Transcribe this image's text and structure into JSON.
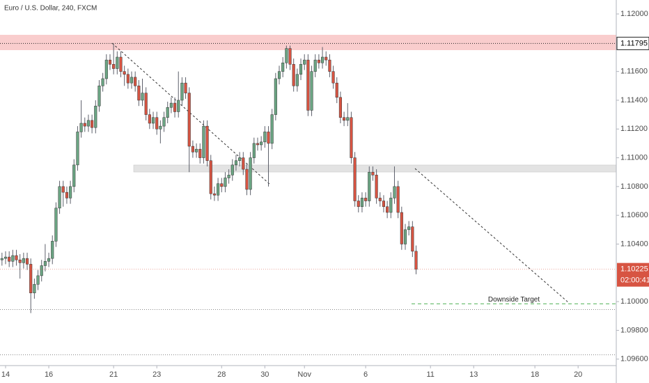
{
  "chart_data": {
    "type": "candlestick",
    "title": "Euro / U.S. Dollar, 240, FXCM",
    "up_color": "#6ba583",
    "down_color": "#d75442",
    "wick_color": "#5d606b",
    "xlim": [
      -1.55,
      169.6
    ],
    "ylim": [
      1.09555,
      1.12097
    ],
    "yticks": [
      {
        "value": 1.12,
        "label": "1.12000"
      },
      {
        "value": 1.116,
        "label": "1.11600"
      },
      {
        "value": 1.114,
        "label": "1.11400"
      },
      {
        "value": 1.112,
        "label": "1.11200"
      },
      {
        "value": 1.11,
        "label": "1.11000"
      },
      {
        "value": 1.108,
        "label": "1.10800"
      },
      {
        "value": 1.106,
        "label": "1.10600"
      },
      {
        "value": 1.104,
        "label": "1.10400"
      },
      {
        "value": 1.1,
        "label": "1.10000"
      },
      {
        "value": 1.098,
        "label": "1.09800"
      },
      {
        "value": 1.096,
        "label": "1.09600"
      }
    ],
    "xticks": [
      {
        "value": 0,
        "label": "14"
      },
      {
        "value": 12,
        "label": "16"
      },
      {
        "value": 30,
        "label": "21"
      },
      {
        "value": 42,
        "label": "23"
      },
      {
        "value": 60,
        "label": "28"
      },
      {
        "value": 72,
        "label": "30"
      },
      {
        "value": 83,
        "label": "Nov"
      },
      {
        "value": 100,
        "label": "6"
      },
      {
        "value": 118,
        "label": "11"
      },
      {
        "value": 130,
        "label": "13"
      },
      {
        "value": 147,
        "label": "18"
      },
      {
        "value": 159,
        "label": "20"
      }
    ],
    "price_line": 1.11795,
    "dotted_lines": [
      1.09945,
      1.0963
    ],
    "target": {
      "value": 1.09985,
      "label": "Downside Target"
    },
    "countdown": "02:00:41",
    "x": [
      -1,
      0,
      1,
      2,
      3,
      4,
      5,
      6,
      7,
      8,
      9,
      10,
      11,
      12,
      13,
      14,
      15,
      16,
      17,
      18,
      19,
      20,
      21,
      22,
      23,
      24,
      25,
      26,
      27,
      28,
      29,
      30,
      31,
      32,
      33,
      34,
      35,
      36,
      37,
      38,
      39,
      40,
      41,
      42,
      43,
      44,
      45,
      46,
      47,
      48,
      49,
      50,
      51,
      52,
      53,
      54,
      55,
      56,
      57,
      58,
      59,
      60,
      61,
      62,
      63,
      64,
      65,
      66,
      67,
      68,
      69,
      70,
      71,
      72,
      73,
      74,
      75,
      76,
      77,
      78,
      79,
      80,
      81,
      82,
      83,
      84,
      85,
      86,
      87,
      88,
      89,
      90,
      91,
      92,
      93,
      94,
      95,
      96,
      97,
      98,
      99,
      100,
      101,
      102,
      103,
      104,
      105,
      106,
      107,
      108,
      109,
      110,
      111,
      112,
      113,
      114
    ],
    "ohlc": [
      [
        1.1029,
        1.1034,
        1.1025,
        1.103
      ],
      [
        1.103,
        1.1035,
        1.1026,
        1.1031
      ],
      [
        1.1031,
        1.1035,
        1.1024,
        1.1028
      ],
      [
        1.1028,
        1.1036,
        1.1024,
        1.1032
      ],
      [
        1.1032,
        1.1036,
        1.1025,
        1.1029
      ],
      [
        1.1029,
        1.1033,
        1.1016,
        1.1027
      ],
      [
        1.1027,
        1.1034,
        1.1023,
        1.103
      ],
      [
        1.103,
        1.1034,
        1.1022,
        1.1026
      ],
      [
        1.1026,
        1.103,
        1.0992,
        1.1006
      ],
      [
        1.1006,
        1.1016,
        1.1002,
        1.1012
      ],
      [
        1.1012,
        1.1022,
        1.1008,
        1.1018
      ],
      [
        1.1018,
        1.1029,
        1.1014,
        1.1025
      ],
      [
        1.1025,
        1.104,
        1.1021,
        1.1028
      ],
      [
        1.1028,
        1.1034,
        1.1024,
        1.103
      ],
      [
        1.103,
        1.1046,
        1.1026,
        1.1042
      ],
      [
        1.1042,
        1.1069,
        1.1038,
        1.1065
      ],
      [
        1.1065,
        1.1084,
        1.1061,
        1.108
      ],
      [
        1.108,
        1.1084,
        1.1066,
        1.1076
      ],
      [
        1.1076,
        1.108,
        1.1068,
        1.1072
      ],
      [
        1.1072,
        1.1084,
        1.1068,
        1.108
      ],
      [
        1.108,
        1.1099,
        1.1076,
        1.1095
      ],
      [
        1.1095,
        1.1122,
        1.1091,
        1.1118
      ],
      [
        1.1118,
        1.114,
        1.1114,
        1.1124
      ],
      [
        1.1124,
        1.1128,
        1.1118,
        1.1122
      ],
      [
        1.1122,
        1.113,
        1.1118,
        1.1126
      ],
      [
        1.1126,
        1.113,
        1.1117,
        1.1121
      ],
      [
        1.1121,
        1.114,
        1.1117,
        1.1136
      ],
      [
        1.1136,
        1.1154,
        1.1132,
        1.115
      ],
      [
        1.115,
        1.1159,
        1.1146,
        1.1155
      ],
      [
        1.1155,
        1.1172,
        1.1151,
        1.1168
      ],
      [
        1.1168,
        1.1172,
        1.1161,
        1.1165
      ],
      [
        1.1165,
        1.1179,
        1.1158,
        1.1162
      ],
      [
        1.1162,
        1.1174,
        1.1158,
        1.117
      ],
      [
        1.117,
        1.1174,
        1.1156,
        1.116
      ],
      [
        1.116,
        1.1164,
        1.115,
        1.1158
      ],
      [
        1.1158,
        1.1162,
        1.1148,
        1.1152
      ],
      [
        1.1152,
        1.116,
        1.1148,
        1.1156
      ],
      [
        1.1156,
        1.116,
        1.1146,
        1.115
      ],
      [
        1.115,
        1.1154,
        1.1136,
        1.114
      ],
      [
        1.114,
        1.1155,
        1.1136,
        1.1145
      ],
      [
        1.1145,
        1.1149,
        1.1126,
        1.113
      ],
      [
        1.113,
        1.1134,
        1.112,
        1.1124
      ],
      [
        1.1124,
        1.1132,
        1.112,
        1.1128
      ],
      [
        1.1128,
        1.1132,
        1.1116,
        1.112
      ],
      [
        1.112,
        1.1126,
        1.111,
        1.1122
      ],
      [
        1.1122,
        1.1132,
        1.1118,
        1.1128
      ],
      [
        1.1128,
        1.1139,
        1.1124,
        1.1135
      ],
      [
        1.1135,
        1.1142,
        1.1131,
        1.1138
      ],
      [
        1.1138,
        1.1142,
        1.1128,
        1.1132
      ],
      [
        1.1132,
        1.116,
        1.1128,
        1.114
      ],
      [
        1.114,
        1.1156,
        1.1136,
        1.1152
      ],
      [
        1.1152,
        1.1156,
        1.1141,
        1.1145
      ],
      [
        1.1145,
        1.1149,
        1.109,
        1.1108
      ],
      [
        1.1108,
        1.1112,
        1.11,
        1.1104
      ],
      [
        1.1104,
        1.111,
        1.11,
        1.1106
      ],
      [
        1.1106,
        1.111,
        1.1096,
        1.11
      ],
      [
        1.11,
        1.1126,
        1.1096,
        1.1122
      ],
      [
        1.1122,
        1.1126,
        1.1094,
        1.1098
      ],
      [
        1.1098,
        1.1102,
        1.1071,
        1.1075
      ],
      [
        1.1075,
        1.108,
        1.107,
        1.1074
      ],
      [
        1.1074,
        1.1086,
        1.107,
        1.1082
      ],
      [
        1.1082,
        1.1086,
        1.1076,
        1.108
      ],
      [
        1.108,
        1.109,
        1.1076,
        1.1086
      ],
      [
        1.1086,
        1.1092,
        1.1082,
        1.1088
      ],
      [
        1.1088,
        1.1099,
        1.1084,
        1.1095
      ],
      [
        1.1095,
        1.1102,
        1.1091,
        1.1098
      ],
      [
        1.1098,
        1.1104,
        1.1094,
        1.11
      ],
      [
        1.11,
        1.1104,
        1.1088,
        1.1092
      ],
      [
        1.1092,
        1.1096,
        1.1074,
        1.1078
      ],
      [
        1.1078,
        1.1104,
        1.1074,
        1.11
      ],
      [
        1.11,
        1.1114,
        1.1096,
        1.111
      ],
      [
        1.111,
        1.1114,
        1.1105,
        1.1109
      ],
      [
        1.1109,
        1.1115,
        1.1105,
        1.1111
      ],
      [
        1.1111,
        1.1122,
        1.1107,
        1.1118
      ],
      [
        1.1118,
        1.1122,
        1.108,
        1.111
      ],
      [
        1.111,
        1.1134,
        1.1106,
        1.113
      ],
      [
        1.113,
        1.1159,
        1.1126,
        1.1155
      ],
      [
        1.1155,
        1.1164,
        1.1151,
        1.116
      ],
      [
        1.116,
        1.117,
        1.1156,
        1.1166
      ],
      [
        1.1166,
        1.1178,
        1.1162,
        1.1176
      ],
      [
        1.1176,
        1.1178,
        1.1161,
        1.1165
      ],
      [
        1.1165,
        1.1169,
        1.1146,
        1.115
      ],
      [
        1.115,
        1.1162,
        1.1146,
        1.1158
      ],
      [
        1.1158,
        1.1169,
        1.1154,
        1.1165
      ],
      [
        1.1165,
        1.1172,
        1.1161,
        1.1168
      ],
      [
        1.1168,
        1.1172,
        1.1129,
        1.1133
      ],
      [
        1.1133,
        1.1164,
        1.1129,
        1.116
      ],
      [
        1.116,
        1.1172,
        1.1156,
        1.1168
      ],
      [
        1.1168,
        1.1172,
        1.1162,
        1.1166
      ],
      [
        1.1166,
        1.1177,
        1.1162,
        1.117
      ],
      [
        1.117,
        1.1174,
        1.1164,
        1.1168
      ],
      [
        1.1168,
        1.1172,
        1.1156,
        1.116
      ],
      [
        1.116,
        1.1164,
        1.1148,
        1.1152
      ],
      [
        1.1152,
        1.1156,
        1.1138,
        1.1142
      ],
      [
        1.1142,
        1.1146,
        1.1124,
        1.1128
      ],
      [
        1.1128,
        1.1132,
        1.1122,
        1.1126
      ],
      [
        1.1126,
        1.1138,
        1.1122,
        1.1128
      ],
      [
        1.1128,
        1.1132,
        1.1096,
        1.11
      ],
      [
        1.11,
        1.1104,
        1.1066,
        1.107
      ],
      [
        1.107,
        1.1074,
        1.1062,
        1.1066
      ],
      [
        1.1066,
        1.1076,
        1.1062,
        1.1072
      ],
      [
        1.1072,
        1.1076,
        1.1066,
        1.107
      ],
      [
        1.107,
        1.1094,
        1.1066,
        1.109
      ],
      [
        1.109,
        1.1094,
        1.1084,
        1.1088
      ],
      [
        1.1088,
        1.1092,
        1.1068,
        1.1072
      ],
      [
        1.1072,
        1.1076,
        1.1066,
        1.107
      ],
      [
        1.107,
        1.1074,
        1.1062,
        1.1066
      ],
      [
        1.1066,
        1.107,
        1.1058,
        1.1062
      ],
      [
        1.1062,
        1.1076,
        1.1058,
        1.1072
      ],
      [
        1.1072,
        1.1094,
        1.1068,
        1.108
      ],
      [
        1.108,
        1.1084,
        1.1058,
        1.1062
      ],
      [
        1.1062,
        1.1066,
        1.1036,
        1.104
      ],
      [
        1.104,
        1.1054,
        1.1036,
        1.105
      ],
      [
        1.105,
        1.1056,
        1.1046,
        1.1052
      ],
      [
        1.1052,
        1.1056,
        1.1031,
        1.1035
      ],
      [
        1.1035,
        1.1039,
        1.1019,
        1.10225
      ]
    ]
  }
}
